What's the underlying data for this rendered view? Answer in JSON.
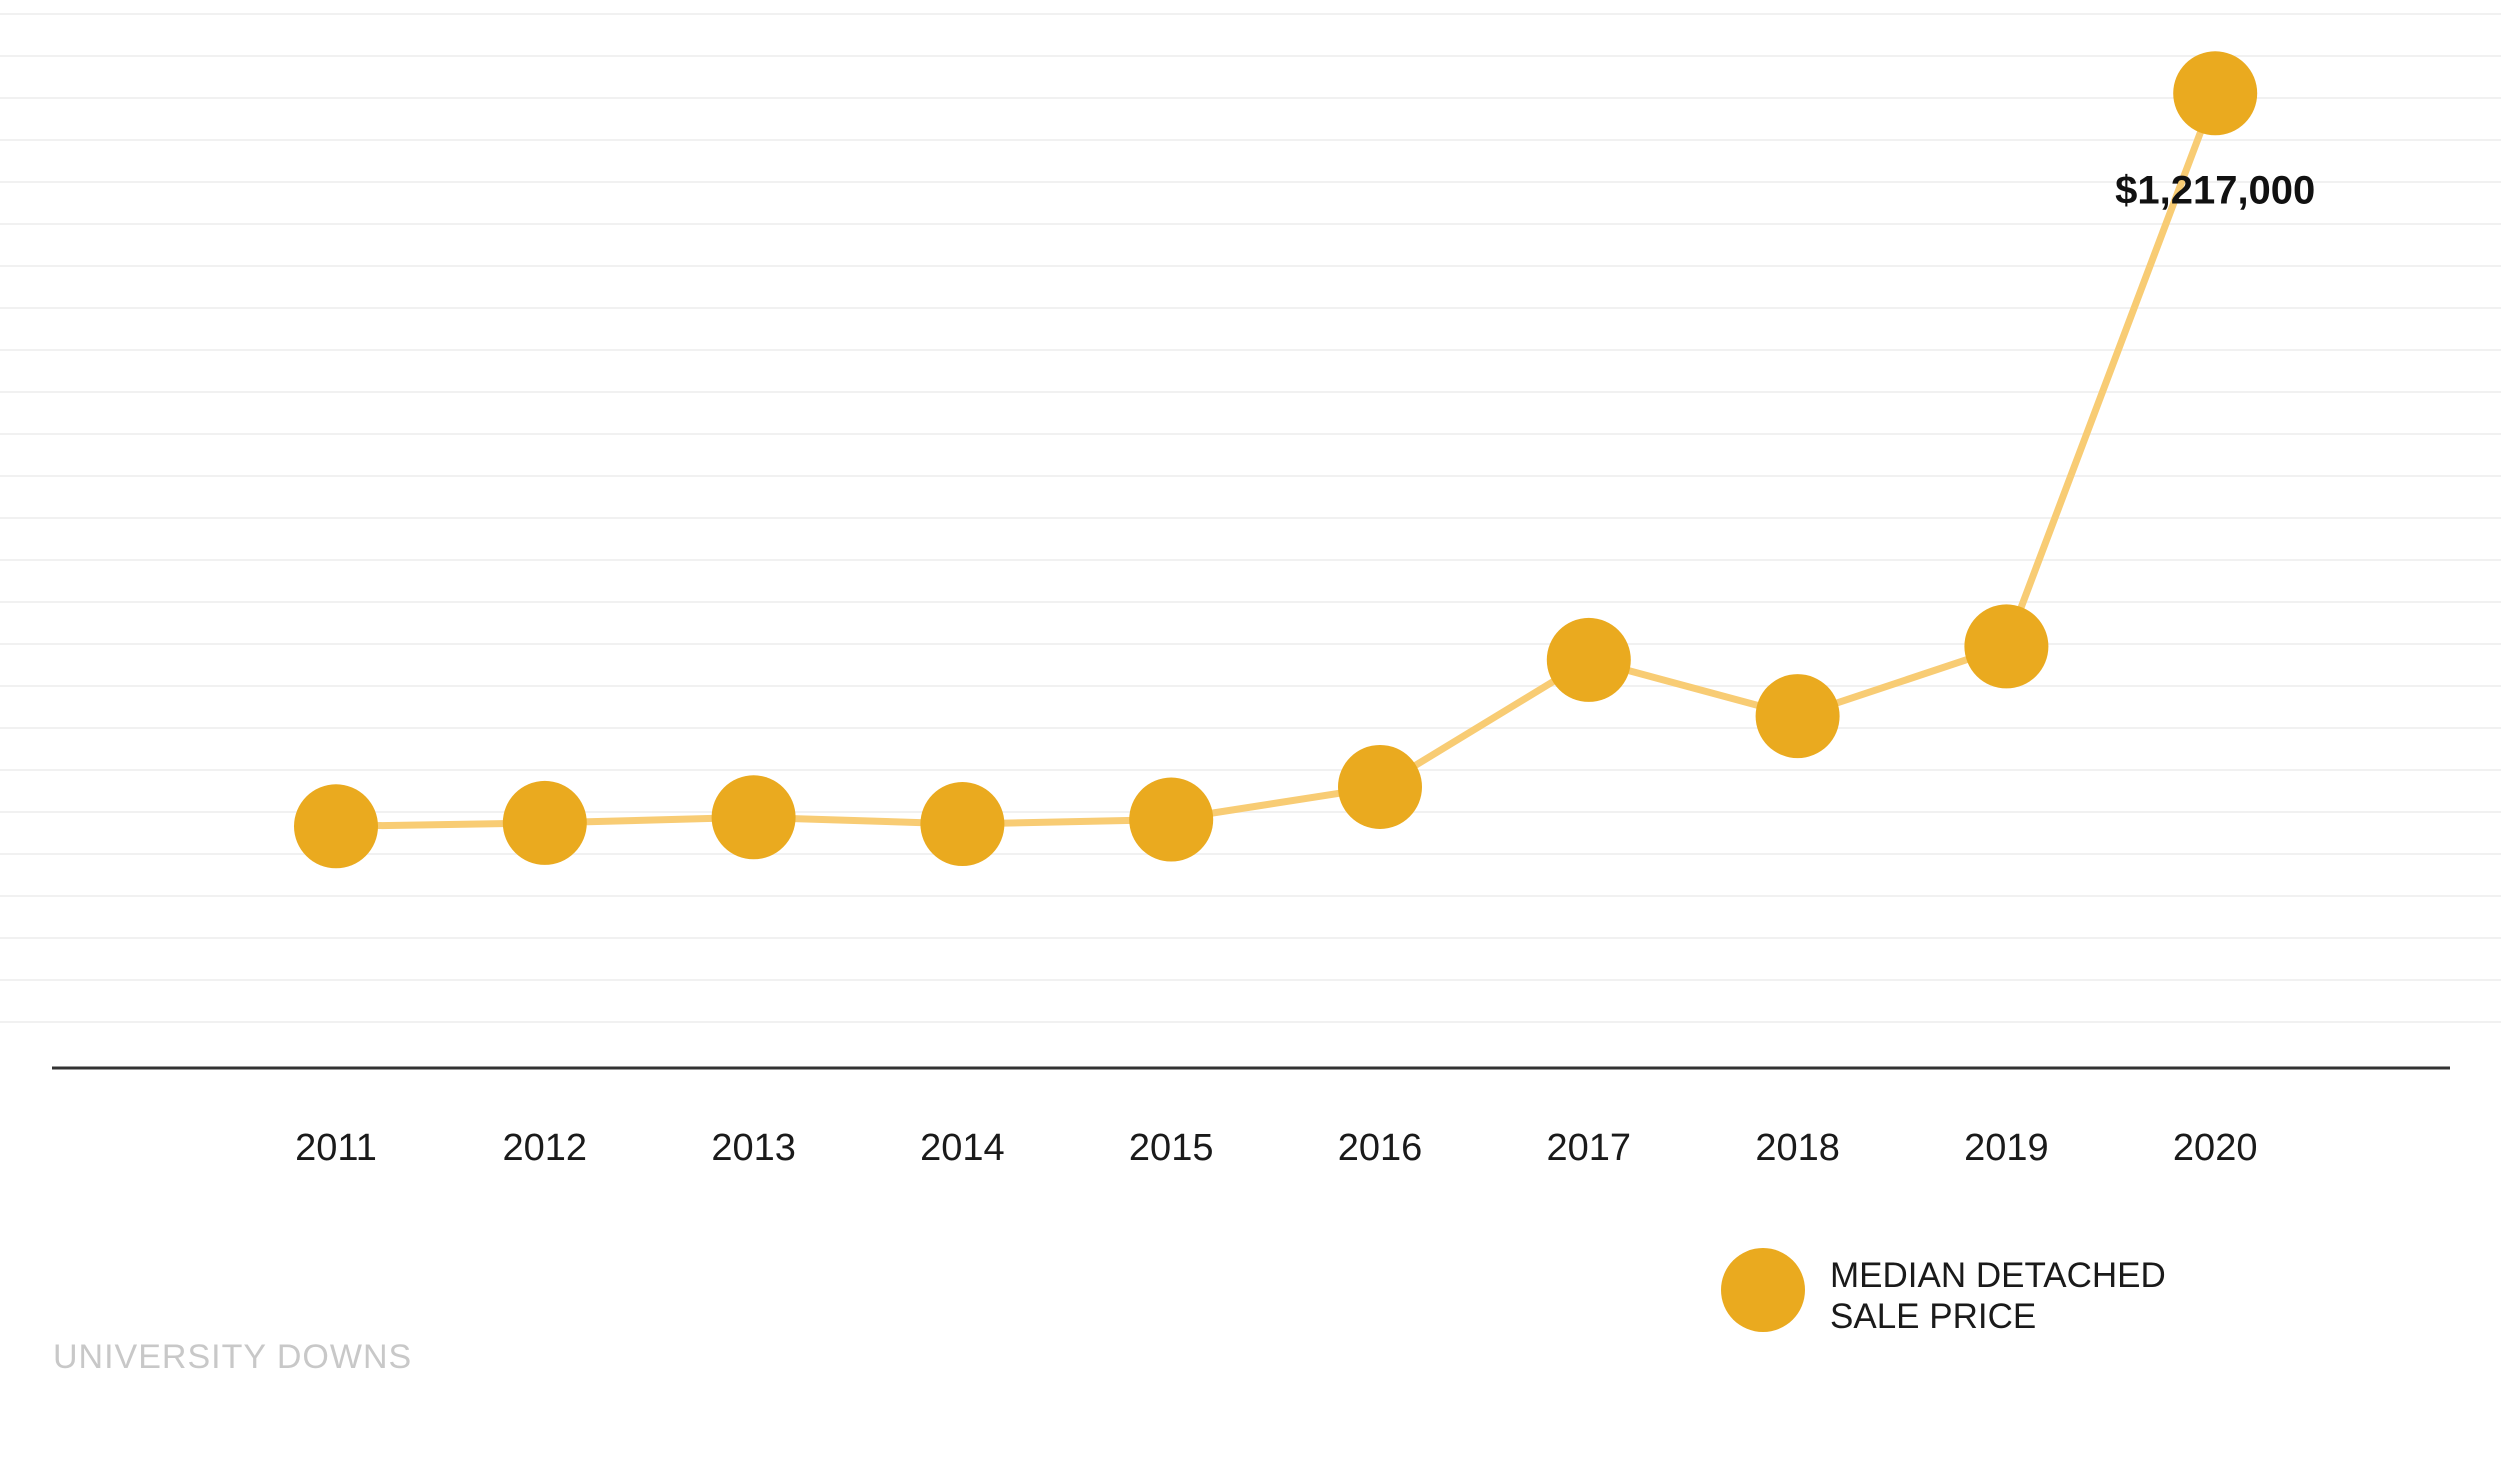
{
  "chart_data": {
    "type": "line",
    "title": "",
    "xlabel": "",
    "ylabel": "",
    "categories": [
      "2011",
      "2012",
      "2013",
      "2014",
      "2015",
      "2016",
      "2017",
      "2018",
      "2019",
      "2020"
    ],
    "series": [
      {
        "name": "MEDIAN DETACHED SALE PRICE",
        "values": [
          565000,
          568000,
          573000,
          567000,
          571000,
          600000,
          713000,
          663000,
          725000,
          1217000
        ]
      }
    ],
    "ylim": [
      350000,
      1300000
    ],
    "grid": true,
    "legend": "bottom-right",
    "annotations": [
      {
        "category": "2020",
        "text": "$1,217,000"
      }
    ],
    "colors": {
      "marker": "#EAAA1F",
      "line": "#F8CC74",
      "axis": "#333333",
      "grid": "#f1f1f1"
    }
  },
  "legend": {
    "line1": "MEDIAN DETACHED",
    "line2": "SALE PRICE"
  },
  "footer": {
    "text": "UNIVERSITY DOWNS"
  }
}
